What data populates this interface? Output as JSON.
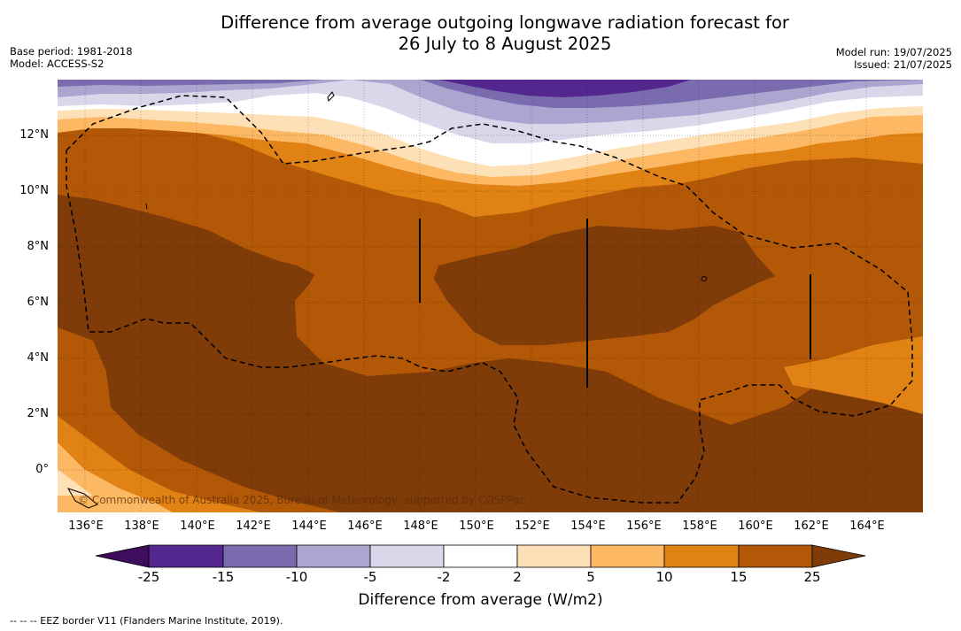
{
  "title": {
    "line1": "Difference from average outgoing longwave radiation forecast for",
    "line2": "26 July to 8 August 2025"
  },
  "meta": {
    "base_period": "Base period: 1981-2018",
    "model": "Model: ACCESS-S2",
    "model_run": "Model run: 19/07/2025",
    "issued": "Issued: 21/07/2025"
  },
  "map": {
    "lat_labels": [
      "12°N",
      "10°N",
      "8°N",
      "6°N",
      "4°N",
      "2°N",
      "0°"
    ],
    "lon_labels": [
      "136°E",
      "138°E",
      "140°E",
      "142°E",
      "144°E",
      "146°E",
      "148°E",
      "150°E",
      "152°E",
      "154°E",
      "156°E",
      "158°E",
      "160°E",
      "162°E",
      "164°E"
    ],
    "copyright": "© Commonwealth of Australia 2025, Bureau of Meteorology, supported by COSPPac",
    "colors": {
      "minus25_15": "#54278f",
      "minus15_10": "#7a6baf",
      "minus10_5": "#aba6d0",
      "minus5_2": "#d9d8eb",
      "minus2_2": "#ffffff",
      "plus2_5": "#fee0b6",
      "plus5_10": "#fdb863",
      "plus10_15": "#e08214",
      "plus15_25": "#b35806",
      "plus25": "#7f3b08"
    }
  },
  "colorbar": {
    "ticks": [
      "-25",
      "-15",
      "-10",
      "-5",
      "-2",
      "2",
      "5",
      "10",
      "15",
      "25"
    ],
    "label": "Difference from average (W/m2)",
    "colors": [
      "#3f0d5e",
      "#54278f",
      "#7a6baf",
      "#aba6d0",
      "#d9d8eb",
      "#ffffff",
      "#fee0b6",
      "#fdb863",
      "#e08214",
      "#b35806",
      "#7f3b08"
    ]
  },
  "legend": {
    "eez": "--  --  -- EEZ border V11 (Flanders Marine Institute, 2019)."
  }
}
